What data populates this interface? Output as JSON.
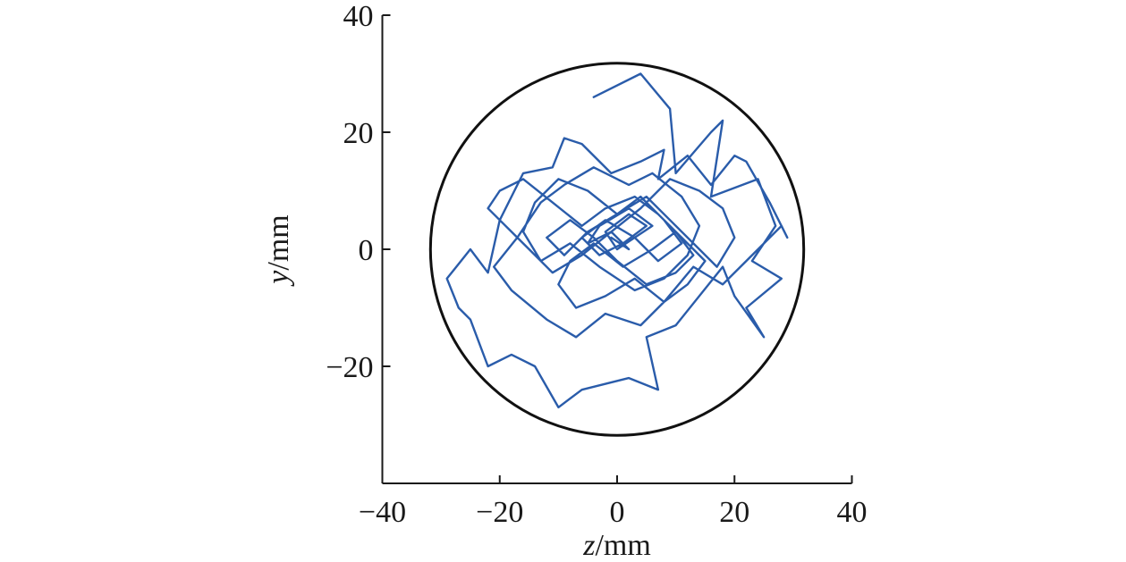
{
  "chart_data": {
    "type": "line",
    "title": "",
    "xlabel": {
      "var": "z",
      "unit": "/mm"
    },
    "ylabel": {
      "var": "y",
      "unit": "/mm"
    },
    "xlim": [
      -40,
      40
    ],
    "ylim": [
      -40,
      40
    ],
    "xticks": [
      -40,
      -20,
      0,
      20,
      40
    ],
    "yticks": [
      -20,
      0,
      20,
      40
    ],
    "xtick_labels": [
      "−40",
      "−20",
      "0",
      "20",
      "40"
    ],
    "ytick_labels": [
      "−20",
      "0",
      "20",
      "40"
    ],
    "grid": false,
    "boundary_circle": {
      "cx": 0,
      "cy": 0,
      "r": 31.8,
      "color": "#111111"
    },
    "series": [
      {
        "color": "#2a5caa",
        "x": [
          -4,
          4,
          9,
          10,
          16,
          18,
          16,
          24,
          27,
          23,
          28,
          22,
          25,
          20,
          18,
          10,
          5,
          7,
          2,
          -6,
          -10,
          -14,
          -18,
          -22,
          -25,
          -27,
          -29,
          -25,
          -22,
          -20,
          -16,
          -11,
          -9,
          -6,
          -1,
          4,
          8,
          7,
          12,
          16,
          20,
          22,
          26,
          29,
          28,
          22,
          18,
          13,
          8,
          4,
          -2,
          -7,
          -12,
          -18,
          -21,
          -17,
          -13,
          -9,
          -4,
          2,
          6,
          11,
          14,
          12,
          8,
          3,
          -3,
          -8,
          -13,
          -16,
          -14,
          -10,
          -5,
          0,
          5,
          9,
          13,
          17,
          20,
          18,
          14,
          9,
          4,
          -1,
          -6,
          -11,
          -15,
          -19,
          -22,
          -20,
          -16,
          -11,
          -6,
          -2,
          3,
          7,
          11,
          15,
          12,
          8,
          3,
          -2,
          -7,
          -10,
          -8,
          -4,
          1,
          6,
          10,
          13,
          10,
          5,
          0,
          -4,
          -8,
          -12,
          -9,
          -5,
          0,
          4,
          8,
          11,
          7,
          3,
          -2,
          -6,
          -3,
          1,
          5,
          2,
          -2,
          0,
          3,
          6,
          2,
          -3,
          -5,
          -1,
          2,
          -1
        ],
        "y": [
          26,
          30,
          24,
          13,
          20,
          22,
          9,
          12,
          4,
          -2,
          -5,
          -10,
          -15,
          -8,
          -3,
          -13,
          -15,
          -24,
          -22,
          -24,
          -27,
          -20,
          -18,
          -20,
          -12,
          -10,
          -5,
          0,
          -4,
          5,
          13,
          14,
          19,
          18,
          13,
          15,
          17,
          12,
          16,
          11,
          16,
          15,
          8,
          2,
          4,
          -2,
          -6,
          -3,
          -9,
          -13,
          -11,
          -15,
          -12,
          -7,
          -3,
          2,
          8,
          11,
          14,
          11,
          13,
          9,
          4,
          -1,
          -5,
          -7,
          -3,
          1,
          -2,
          3,
          8,
          12,
          10,
          6,
          9,
          5,
          1,
          -3,
          2,
          7,
          10,
          12,
          7,
          3,
          -1,
          -4,
          0,
          4,
          7,
          10,
          12,
          8,
          4,
          7,
          9,
          6,
          2,
          -2,
          -6,
          -9,
          -5,
          -8,
          -10,
          -6,
          -2,
          1,
          -3,
          0,
          3,
          -1,
          -4,
          -6,
          -2,
          2,
          5,
          2,
          -1,
          3,
          6,
          9,
          5,
          1,
          -2,
          2,
          5,
          2,
          -1,
          1,
          4,
          6,
          3,
          0,
          2,
          4,
          7,
          4,
          1,
          3,
          0,
          2
        ]
      }
    ]
  }
}
